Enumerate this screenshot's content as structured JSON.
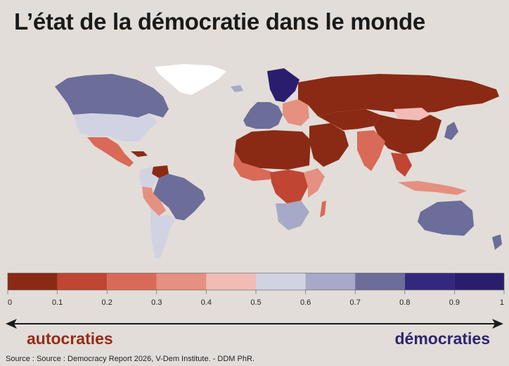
{
  "title": "L’état de la démocratie dans le monde",
  "legend": {
    "bins": [
      {
        "from": 0,
        "to": 0.1,
        "color": "#8b2a14"
      },
      {
        "from": 0.1,
        "to": 0.2,
        "color": "#c04532"
      },
      {
        "from": 0.2,
        "to": 0.3,
        "color": "#d86a57"
      },
      {
        "from": 0.3,
        "to": 0.4,
        "color": "#e59080"
      },
      {
        "from": 0.4,
        "to": 0.5,
        "color": "#f1bcb5"
      },
      {
        "from": 0.5,
        "to": 0.6,
        "color": "#d1d3e3"
      },
      {
        "from": 0.6,
        "to": 0.7,
        "color": "#a7a9c8"
      },
      {
        "from": 0.7,
        "to": 0.8,
        "color": "#6c6d99"
      },
      {
        "from": 0.8,
        "to": 0.9,
        "color": "#34287e"
      },
      {
        "from": 0.9,
        "to": 1,
        "color": "#2b1d6e"
      }
    ],
    "ticks": [
      "0",
      "0.1",
      "0.2",
      "0.3",
      "0.4",
      "0.5",
      "0.6",
      "0.7",
      "0.8",
      "0.9",
      "1"
    ]
  },
  "scale": {
    "left_label": "autocraties",
    "left_color": "#962b18",
    "right_label": "démocraties",
    "right_color": "#2e2570"
  },
  "source": "Source : Source : Democracy Report 2026, V-Dem Institute. - DDM PhR.",
  "colors": {
    "background": "#e2ddd8",
    "no_data": "#ffffff"
  }
}
